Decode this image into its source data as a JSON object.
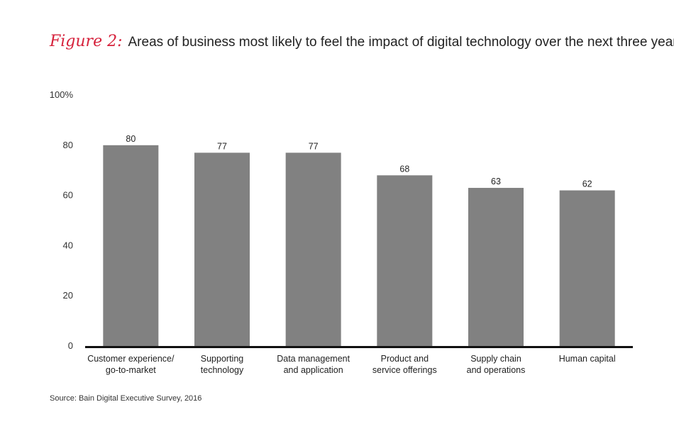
{
  "figure": {
    "label": "Figure 2:",
    "title": "Areas of business most likely to feel the impact of digital technology over the next three years"
  },
  "source": "Source: Bain Digital Executive Survey, 2016",
  "chart_data": {
    "type": "bar",
    "title": "Areas of business most likely to feel the impact of digital technology over the next three years",
    "categories": [
      [
        "Customer experience/",
        "go-to-market"
      ],
      [
        "Supporting",
        "technology"
      ],
      [
        "Data management",
        "and application"
      ],
      [
        "Product and",
        "service offerings"
      ],
      [
        "Supply chain",
        "and operations"
      ],
      [
        "Human capital"
      ]
    ],
    "values": [
      80,
      77,
      77,
      68,
      63,
      62
    ],
    "ylim": [
      0,
      100
    ],
    "yticks": [
      "0",
      "20",
      "40",
      "60",
      "80",
      "100%"
    ],
    "ytick_values": [
      0,
      20,
      40,
      60,
      80,
      100
    ],
    "bar_color": "#818181",
    "axis_color": "#111111",
    "grid": false,
    "legend": "none"
  }
}
